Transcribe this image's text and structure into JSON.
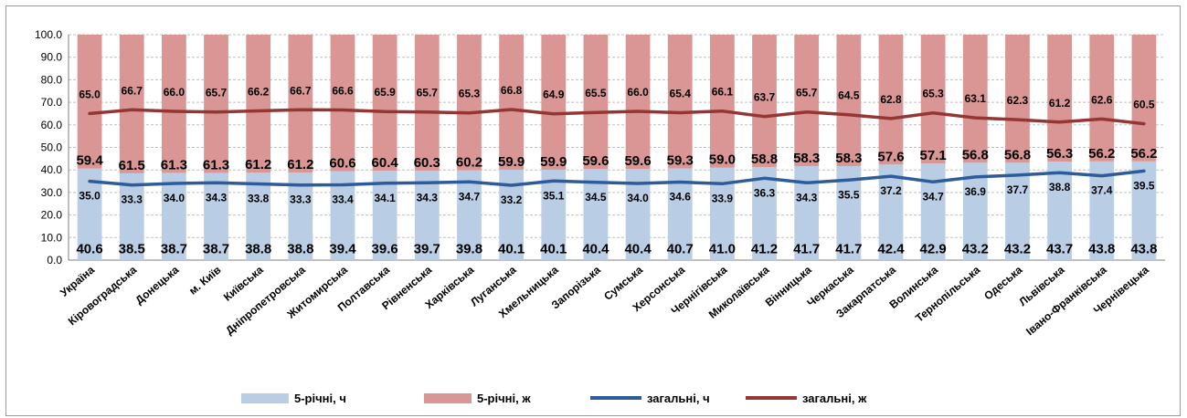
{
  "chart_data": {
    "type": "bar",
    "stacked": true,
    "categories": [
      "Україна",
      "Кіровоградська",
      "Донецька",
      "м. Київ",
      "Київська",
      "Дніпропетровська",
      "Житомирська",
      "Полтавська",
      "Рівненська",
      "Харківська",
      "Луганська",
      "Хмельницька",
      "Запорізька",
      "Сумська",
      "Херсонська",
      "Чернігівська",
      "Миколаївська",
      "Вінницька",
      "Черкаська",
      "Закарпатська",
      "Волинська",
      "Тернопільська",
      "Одеська",
      "Львівська",
      "Івано-Франківська",
      "Чернівецька"
    ],
    "ylim": [
      0,
      100
    ],
    "yticks": [
      "0.0",
      "10.0",
      "20.0",
      "30.0",
      "40.0",
      "50.0",
      "60.0",
      "70.0",
      "80.0",
      "90.0",
      "100.0"
    ],
    "grid": true,
    "legend_position": "bottom",
    "series": [
      {
        "name": "5-річні, ч",
        "kind": "bar",
        "color": "#b9cde5",
        "values": [
          40.6,
          38.5,
          38.7,
          38.7,
          38.8,
          38.8,
          39.4,
          39.6,
          39.7,
          39.8,
          40.1,
          40.1,
          40.4,
          40.4,
          40.7,
          41.0,
          41.2,
          41.7,
          41.7,
          42.4,
          42.9,
          43.2,
          43.2,
          43.7,
          43.8,
          43.8
        ]
      },
      {
        "name": "5-річні, ж",
        "kind": "bar",
        "color": "#d99694",
        "values": [
          59.4,
          61.5,
          61.3,
          61.3,
          61.2,
          61.2,
          60.6,
          60.4,
          60.3,
          60.2,
          59.9,
          59.9,
          59.6,
          59.6,
          59.3,
          59.0,
          58.8,
          58.3,
          58.3,
          57.6,
          57.1,
          56.8,
          56.8,
          56.3,
          56.2,
          56.2
        ]
      },
      {
        "name": "загальні, ч",
        "kind": "line",
        "color": "#2e5c9a",
        "values": [
          35.0,
          33.3,
          34.0,
          34.3,
          33.8,
          33.3,
          33.4,
          34.1,
          34.3,
          34.7,
          33.2,
          35.1,
          34.5,
          34.0,
          34.6,
          33.9,
          36.3,
          34.3,
          35.5,
          37.2,
          34.7,
          36.9,
          37.7,
          38.8,
          37.4,
          39.5
        ]
      },
      {
        "name": "загальні, ж",
        "kind": "line",
        "color": "#943634",
        "values": [
          65.0,
          66.7,
          66.0,
          65.7,
          66.2,
          66.7,
          66.6,
          65.9,
          65.7,
          65.3,
          66.8,
          64.9,
          65.5,
          66.0,
          65.4,
          66.1,
          63.7,
          65.7,
          64.5,
          62.8,
          65.3,
          63.1,
          62.3,
          61.2,
          62.6,
          60.5
        ]
      }
    ]
  }
}
